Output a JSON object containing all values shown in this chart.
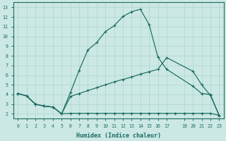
{
  "xlabel": "Humidex (Indice chaleur)",
  "bg_color": "#cce8e4",
  "line_color": "#1a6b62",
  "grid_color": "#b0d8d0",
  "xlim": [
    -0.5,
    23.5
  ],
  "ylim": [
    1.5,
    13.5
  ],
  "xticks": [
    0,
    1,
    2,
    3,
    4,
    5,
    6,
    7,
    8,
    9,
    10,
    11,
    12,
    13,
    14,
    15,
    16,
    17,
    19,
    20,
    21,
    22,
    23
  ],
  "yticks": [
    2,
    3,
    4,
    5,
    6,
    7,
    8,
    9,
    10,
    11,
    12,
    13
  ],
  "curve1_x": [
    0,
    1,
    2,
    3,
    4,
    5,
    6,
    7,
    8,
    9,
    10,
    11,
    12,
    13,
    14,
    15,
    16,
    17,
    20,
    21,
    22,
    23
  ],
  "curve1_y": [
    4.1,
    3.85,
    3.0,
    2.8,
    2.7,
    2.0,
    4.2,
    6.5,
    8.6,
    9.35,
    10.5,
    11.1,
    12.05,
    12.55,
    12.8,
    11.2,
    7.85,
    6.6,
    4.85,
    4.1,
    4.0,
    1.8
  ],
  "curve2_x": [
    0,
    1,
    2,
    3,
    4,
    5,
    6,
    7,
    8,
    9,
    10,
    11,
    12,
    13,
    14,
    15,
    16,
    17,
    20,
    21,
    22,
    23
  ],
  "curve2_y": [
    4.1,
    3.85,
    3.0,
    2.8,
    2.7,
    2.0,
    3.8,
    4.1,
    4.4,
    4.7,
    5.0,
    5.3,
    5.55,
    5.8,
    6.1,
    6.35,
    6.6,
    7.8,
    6.4,
    5.0,
    3.9,
    1.85
  ],
  "curve3_x": [
    0,
    1,
    2,
    3,
    4,
    5,
    6,
    7,
    8,
    9,
    10,
    11,
    12,
    13,
    14,
    15,
    16,
    17,
    18,
    19,
    20,
    21,
    22,
    23
  ],
  "curve3_y": [
    4.1,
    3.85,
    3.0,
    2.8,
    2.7,
    2.0,
    2.05,
    2.05,
    2.05,
    2.05,
    2.05,
    2.05,
    2.05,
    2.05,
    2.05,
    2.05,
    2.05,
    2.05,
    2.05,
    2.05,
    2.05,
    2.05,
    2.05,
    1.85
  ]
}
